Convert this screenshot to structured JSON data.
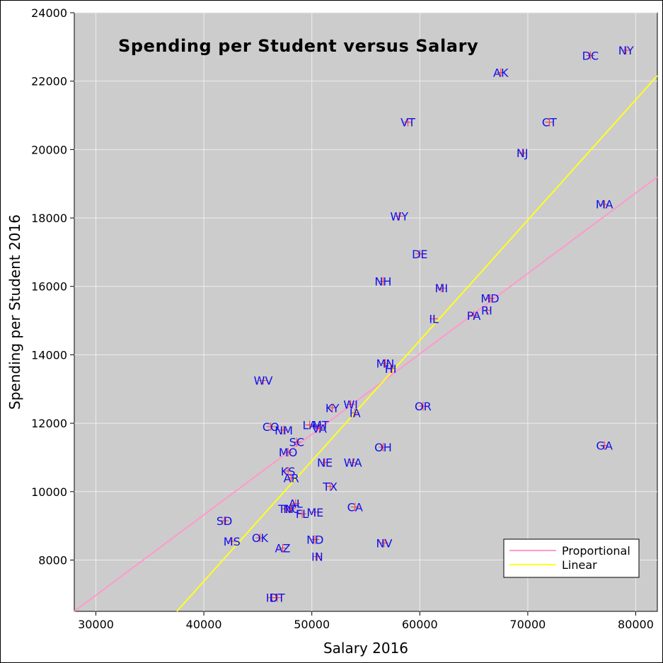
{
  "chart_data": {
    "type": "scatter",
    "title": "Spending per Student versus Salary",
    "xlabel": "Salary 2016",
    "ylabel": "Spending per Student 2016",
    "xlim": [
      28000,
      82000
    ],
    "ylim": [
      6500,
      24000
    ],
    "xticks": [
      30000,
      40000,
      50000,
      60000,
      70000,
      80000
    ],
    "yticks": [
      8000,
      10000,
      12000,
      14000,
      16000,
      18000,
      20000,
      22000,
      24000
    ],
    "grid": true,
    "legend_position": "bottom-right",
    "colors": {
      "plot_background": "#cccccc",
      "grid": "#eeeeee",
      "point_marker": "#ff3333",
      "point_label": "#1010ee",
      "proportional": "#ff99cc",
      "linear": "#ffff22"
    },
    "series": [
      {
        "name": "Proportional",
        "kind": "line",
        "color": "#ff99cc",
        "x": [
          28000,
          82000
        ],
        "y": [
          6500,
          19200
        ]
      },
      {
        "name": "Linear",
        "kind": "line",
        "color": "#ffff22",
        "x": [
          37500,
          82000
        ],
        "y": [
          6500,
          22160
        ]
      }
    ],
    "points": [
      {
        "label": "NY",
        "x": 79100,
        "y": 22900
      },
      {
        "label": "DC",
        "x": 75800,
        "y": 22750
      },
      {
        "label": "AK",
        "x": 67500,
        "y": 22250
      },
      {
        "label": "VT",
        "x": 58900,
        "y": 20800
      },
      {
        "label": "CT",
        "x": 72000,
        "y": 20800
      },
      {
        "label": "NJ",
        "x": 69500,
        "y": 19900
      },
      {
        "label": "MA",
        "x": 77100,
        "y": 18400
      },
      {
        "label": "WY",
        "x": 58100,
        "y": 18050
      },
      {
        "label": "DE",
        "x": 60000,
        "y": 16950
      },
      {
        "label": "NH",
        "x": 56600,
        "y": 16150
      },
      {
        "label": "MI",
        "x": 62000,
        "y": 15950
      },
      {
        "label": "MD",
        "x": 66500,
        "y": 15650
      },
      {
        "label": "RI",
        "x": 66200,
        "y": 15300
      },
      {
        "label": "PA",
        "x": 65000,
        "y": 15150
      },
      {
        "label": "IL",
        "x": 61300,
        "y": 15050
      },
      {
        "label": "MN",
        "x": 56800,
        "y": 13750
      },
      {
        "label": "HI",
        "x": 57300,
        "y": 13600
      },
      {
        "label": "WV",
        "x": 45500,
        "y": 13250
      },
      {
        "label": "OR",
        "x": 60300,
        "y": 12500
      },
      {
        "label": "WI",
        "x": 53600,
        "y": 12550
      },
      {
        "label": "KY",
        "x": 51900,
        "y": 12450
      },
      {
        "label": "IA",
        "x": 54000,
        "y": 12300
      },
      {
        "label": "LA",
        "x": 49800,
        "y": 11950
      },
      {
        "label": "MT",
        "x": 50800,
        "y": 11950
      },
      {
        "label": "VA",
        "x": 50700,
        "y": 11850
      },
      {
        "label": "CO",
        "x": 46200,
        "y": 11900
      },
      {
        "label": "NM",
        "x": 47400,
        "y": 11800
      },
      {
        "label": "SC",
        "x": 48600,
        "y": 11450
      },
      {
        "label": "GA",
        "x": 77100,
        "y": 11350
      },
      {
        "label": "OH",
        "x": 56600,
        "y": 11300
      },
      {
        "label": "MO",
        "x": 47800,
        "y": 11150
      },
      {
        "label": "NE",
        "x": 51200,
        "y": 10850
      },
      {
        "label": "WA",
        "x": 53800,
        "y": 10850
      },
      {
        "label": "KS",
        "x": 47800,
        "y": 10600
      },
      {
        "label": "AR",
        "x": 48100,
        "y": 10400
      },
      {
        "label": "TX",
        "x": 51700,
        "y": 10150
      },
      {
        "label": "AL",
        "x": 48500,
        "y": 9650
      },
      {
        "label": "CA",
        "x": 54000,
        "y": 9550
      },
      {
        "label": "TN",
        "x": 47600,
        "y": 9500
      },
      {
        "label": "NC",
        "x": 48100,
        "y": 9500
      },
      {
        "label": "ME",
        "x": 50300,
        "y": 9400
      },
      {
        "label": "FL",
        "x": 49100,
        "y": 9350
      },
      {
        "label": "SD",
        "x": 41900,
        "y": 9150
      },
      {
        "label": "OK",
        "x": 45200,
        "y": 8650
      },
      {
        "label": "ND",
        "x": 50300,
        "y": 8600
      },
      {
        "label": "MS",
        "x": 42600,
        "y": 8550
      },
      {
        "label": "NV",
        "x": 56700,
        "y": 8500
      },
      {
        "label": "AZ",
        "x": 47300,
        "y": 8350
      },
      {
        "label": "IN",
        "x": 50500,
        "y": 8100
      },
      {
        "label": "ID",
        "x": 46300,
        "y": 6900
      },
      {
        "label": "UT",
        "x": 46800,
        "y": 6900
      }
    ]
  }
}
